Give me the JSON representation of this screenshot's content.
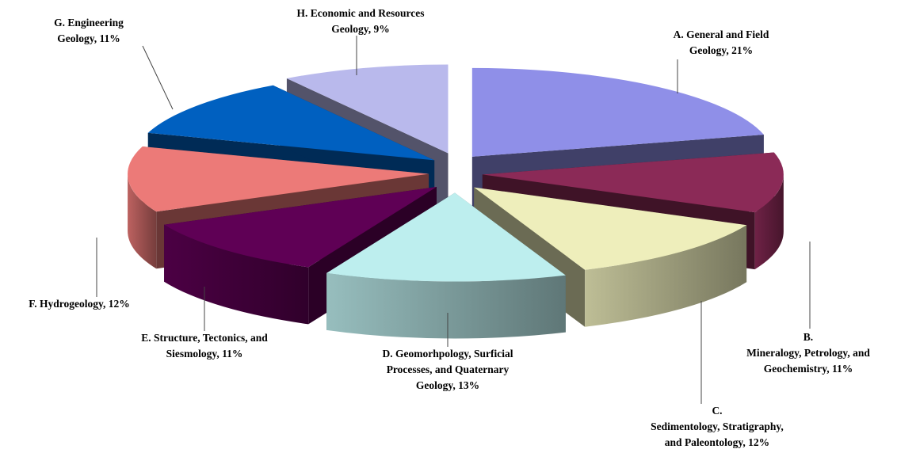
{
  "chart_data": {
    "type": "pie3d",
    "labels": [
      [
        "A.  General and Field",
        "Geology, 21%"
      ],
      [
        "B.",
        "Mineralogy, Petrology, and",
        "Geochemistry, 11%"
      ],
      [
        "C.",
        "Sedimentology, Stratigraphy,",
        "and Paleontology, 12%"
      ],
      [
        "D.  Geomorhpology, Surficial",
        "Processes, and Quaternary",
        "Geology, 13%"
      ],
      [
        "E.  Structure, Tectonics, and",
        "Siesmology, 11%"
      ],
      [
        "F.  Hydrogeology, 12%"
      ],
      [
        "G.  Engineering",
        "Geology, 11%"
      ],
      [
        "H.  Economic and Resources",
        "Geology, 9%"
      ]
    ],
    "values": [
      21,
      11,
      12,
      13,
      11,
      12,
      11,
      9
    ],
    "colors": [
      "#8f8fe8",
      "#8b2a57",
      "#eeeebb",
      "#bdeeee",
      "#5f0055",
      "#ec7a78",
      "#0060c0",
      "#b9b9ec"
    ]
  }
}
